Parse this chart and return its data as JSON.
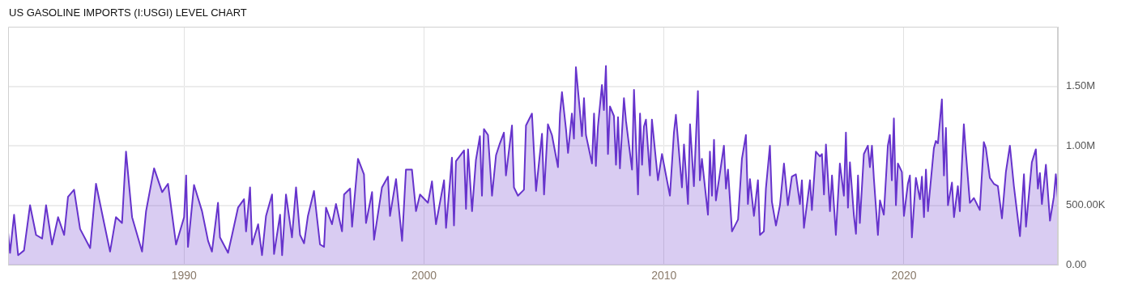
{
  "chart_data": {
    "type": "area",
    "title": "US GASOLINE IMPORTS (I:USGI) LEVEL CHART",
    "x": [
      "1982-09",
      "1982-10",
      "1982-12",
      "1983-02",
      "1983-05",
      "1983-08",
      "1983-11",
      "1984-02",
      "1984-04",
      "1984-07",
      "1984-10",
      "1985-01",
      "1985-03",
      "1985-06",
      "1985-09",
      "1986-02",
      "1986-05",
      "1986-09",
      "1986-12",
      "1987-03",
      "1987-06",
      "1987-08",
      "1987-11",
      "1988-04",
      "1988-06",
      "1988-10",
      "1989-02",
      "1989-05",
      "1989-09",
      "1990-01",
      "1990-02",
      "1990-03",
      "1990-06",
      "1990-10",
      "1991-01",
      "1991-03",
      "1991-06",
      "1991-07",
      "1991-11",
      "1992-01",
      "1992-04",
      "1992-07",
      "1992-08",
      "1992-10",
      "1992-11",
      "1993-02",
      "1993-04",
      "1993-06",
      "1993-09",
      "1993-10",
      "1994-01",
      "1994-02",
      "1994-04",
      "1994-07",
      "1994-09",
      "1994-11",
      "1995-01",
      "1995-03",
      "1995-06",
      "1995-09",
      "1995-11",
      "1995-12",
      "1996-03",
      "1996-05",
      "1996-08",
      "1996-09",
      "1996-12",
      "1997-01",
      "1997-04",
      "1997-07",
      "1997-08",
      "1997-11",
      "1997-12",
      "1998-04",
      "1998-07",
      "1998-08",
      "1998-11",
      "1999-02",
      "1999-04",
      "1999-07",
      "1999-09",
      "1999-11",
      "2000-03",
      "2000-05",
      "2000-07",
      "2000-11",
      "2000-12",
      "2001-02",
      "2001-03",
      "2001-04",
      "2001-05",
      "2001-09",
      "2001-10",
      "2001-11",
      "2002-01",
      "2002-03",
      "2002-05",
      "2002-06",
      "2002-07",
      "2002-09",
      "2002-11",
      "2003-01",
      "2003-03",
      "2003-05",
      "2003-06",
      "2003-09",
      "2003-10",
      "2003-12",
      "2004-03",
      "2004-04",
      "2004-07",
      "2004-09",
      "2004-12",
      "2005-01",
      "2005-03",
      "2005-05",
      "2005-08",
      "2005-09",
      "2005-10",
      "2005-12",
      "2006-01",
      "2006-03",
      "2006-04",
      "2006-05",
      "2006-07",
      "2006-08",
      "2006-09",
      "2006-10",
      "2007-01",
      "2007-02",
      "2007-03",
      "2007-04",
      "2007-06",
      "2007-07",
      "2007-08",
      "2007-09",
      "2007-10",
      "2007-12",
      "2008-01",
      "2008-02",
      "2008-03",
      "2008-05",
      "2008-06",
      "2008-09",
      "2008-10",
      "2008-12",
      "2009-01",
      "2009-02",
      "2009-03",
      "2009-04",
      "2009-06",
      "2009-07",
      "2009-10",
      "2009-12",
      "2010-02",
      "2010-04",
      "2010-06",
      "2010-07",
      "2010-10",
      "2010-11",
      "2011-01",
      "2011-02",
      "2011-04",
      "2011-06",
      "2011-07",
      "2011-08",
      "2011-11",
      "2011-12",
      "2012-01",
      "2012-02",
      "2012-03",
      "2012-07",
      "2012-08",
      "2012-09",
      "2012-11",
      "2013-02",
      "2013-04",
      "2013-06",
      "2013-07",
      "2013-08",
      "2013-10",
      "2013-12",
      "2014-01",
      "2014-03",
      "2014-04",
      "2014-06",
      "2014-07",
      "2014-09",
      "2014-11",
      "2015-01",
      "2015-03",
      "2015-05",
      "2015-07",
      "2015-09",
      "2015-10",
      "2015-11",
      "2016-02",
      "2016-03",
      "2016-05",
      "2016-07",
      "2016-08",
      "2016-09",
      "2016-10",
      "2016-12",
      "2017-01",
      "2017-03",
      "2017-05",
      "2017-07",
      "2017-08",
      "2017-09",
      "2017-10",
      "2017-12",
      "2018-01",
      "2018-02",
      "2018-03",
      "2018-05",
      "2018-07",
      "2018-08",
      "2018-09",
      "2018-10",
      "2018-12",
      "2019-01",
      "2019-03",
      "2019-05",
      "2019-06",
      "2019-07",
      "2019-08",
      "2019-09",
      "2019-10",
      "2019-12",
      "2020-01",
      "2020-03",
      "2020-04",
      "2020-05",
      "2020-07",
      "2020-09",
      "2020-10",
      "2020-11",
      "2020-12",
      "2021-01",
      "2021-04",
      "2021-05",
      "2021-06",
      "2021-08",
      "2021-09",
      "2021-10",
      "2021-11",
      "2022-01",
      "2022-02",
      "2022-04",
      "2022-05",
      "2022-06",
      "2022-07",
      "2022-08",
      "2022-10",
      "2022-12",
      "2023-03",
      "2023-05",
      "2023-06",
      "2023-08",
      "2023-10",
      "2023-12",
      "2024-02",
      "2024-04",
      "2024-06",
      "2024-08",
      "2024-11",
      "2025-01",
      "2025-02",
      "2025-05",
      "2025-07",
      "2025-08",
      "2025-09",
      "2025-10",
      "2025-12",
      "2026-02",
      "2026-04",
      "2026-05",
      "2026-06"
    ],
    "series": [
      {
        "color": "#6633cc",
        "values": [
          270000,
          100000,
          420000,
          80000,
          120000,
          500000,
          250000,
          220000,
          500000,
          170000,
          400000,
          250000,
          570000,
          630000,
          300000,
          140000,
          680000,
          350000,
          110000,
          400000,
          350000,
          950000,
          400000,
          110000,
          450000,
          810000,
          610000,
          680000,
          170000,
          400000,
          750000,
          150000,
          670000,
          450000,
          200000,
          110000,
          520000,
          230000,
          100000,
          250000,
          480000,
          550000,
          280000,
          650000,
          170000,
          340000,
          80000,
          410000,
          590000,
          90000,
          420000,
          80000,
          590000,
          230000,
          650000,
          250000,
          180000,
          410000,
          620000,
          170000,
          150000,
          480000,
          340000,
          510000,
          280000,
          590000,
          640000,
          320000,
          890000,
          760000,
          350000,
          610000,
          210000,
          650000,
          740000,
          410000,
          720000,
          200000,
          800000,
          800000,
          450000,
          590000,
          520000,
          700000,
          340000,
          710000,
          310000,
          710000,
          900000,
          330000,
          870000,
          960000,
          470000,
          970000,
          450000,
          880000,
          1080000,
          580000,
          1140000,
          1090000,
          580000,
          920000,
          1020000,
          1110000,
          750000,
          1170000,
          650000,
          580000,
          630000,
          1170000,
          1270000,
          620000,
          1100000,
          590000,
          1180000,
          1090000,
          820000,
          1270000,
          1450000,
          1140000,
          940000,
          1270000,
          1060000,
          1660000,
          1290000,
          1080000,
          1400000,
          1090000,
          850000,
          1270000,
          830000,
          1160000,
          1510000,
          1300000,
          1670000,
          930000,
          1330000,
          1250000,
          840000,
          1240000,
          810000,
          1400000,
          1210000,
          800000,
          1470000,
          590000,
          1270000,
          840000,
          1160000,
          1220000,
          750000,
          1220000,
          710000,
          930000,
          750000,
          580000,
          1110000,
          1260000,
          650000,
          1010000,
          510000,
          1180000,
          660000,
          1460000,
          710000,
          890000,
          420000,
          950000,
          580000,
          1050000,
          540000,
          1000000,
          640000,
          800000,
          280000,
          380000,
          890000,
          1090000,
          510000,
          720000,
          410000,
          710000,
          250000,
          280000,
          640000,
          1000000,
          530000,
          330000,
          500000,
          850000,
          500000,
          740000,
          760000,
          510000,
          710000,
          310000,
          710000,
          460000,
          950000,
          910000,
          930000,
          590000,
          1010000,
          450000,
          750000,
          250000,
          850000,
          580000,
          1110000,
          480000,
          860000,
          410000,
          260000,
          750000,
          350000,
          930000,
          1000000,
          820000,
          1000000,
          720000,
          250000,
          540000,
          420000,
          1000000,
          1090000,
          710000,
          1230000,
          500000,
          850000,
          780000,
          410000,
          680000,
          750000,
          230000,
          730000,
          550000,
          740000,
          400000,
          800000,
          450000,
          980000,
          1040000,
          1020000,
          1390000,
          750000,
          1150000,
          500000,
          690000,
          400000,
          660000,
          450000,
          840000,
          1180000,
          940000,
          520000,
          560000,
          460000,
          1030000,
          980000,
          730000,
          680000,
          660000,
          390000,
          780000,
          1000000,
          660000,
          240000,
          760000,
          320000,
          860000,
          970000,
          640000,
          770000,
          510000,
          840000,
          370000,
          570000,
          760000,
          560000
        ]
      }
    ],
    "xlim": [
      "1982-09",
      "2026-06"
    ],
    "xticks": [
      "1990",
      "2000",
      "2010",
      "2020"
    ],
    "ylim": [
      0,
      2000000
    ],
    "yticks": [
      {
        "value": 0,
        "label": "0.00"
      },
      {
        "value": 500000,
        "label": "500.00K"
      },
      {
        "value": 1000000,
        "label": "1.00M"
      },
      {
        "value": 1500000,
        "label": "1.50M"
      }
    ],
    "grid": true
  }
}
